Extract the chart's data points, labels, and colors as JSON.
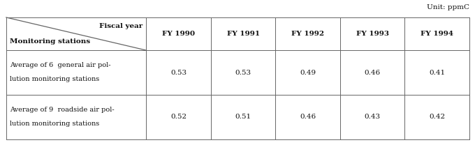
{
  "unit_label": "Unit: ppmC",
  "col_header_top": "Fiscal year",
  "col_header_bottom": "Monitoring stations",
  "columns": [
    "FY 1990",
    "FY 1991",
    "FY 1992",
    "FY 1993",
    "FY 1994"
  ],
  "rows": [
    {
      "label_line1": "Average of 6  general air pol-",
      "label_line2": "lution monitoring stations",
      "values": [
        "0.53",
        "0.53",
        "0.49",
        "0.46",
        "0.41"
      ]
    },
    {
      "label_line1": "Average of 9  roadside air pol-",
      "label_line2": "lution monitoring stations",
      "values": [
        "0.52",
        "0.51",
        "0.46",
        "0.43",
        "0.42"
      ]
    }
  ],
  "bg_color": "#ffffff",
  "text_color": "#111111",
  "line_color": "#666666",
  "font_size": 7.5,
  "header_font_size": 7.5,
  "label_font_size": 7.0
}
